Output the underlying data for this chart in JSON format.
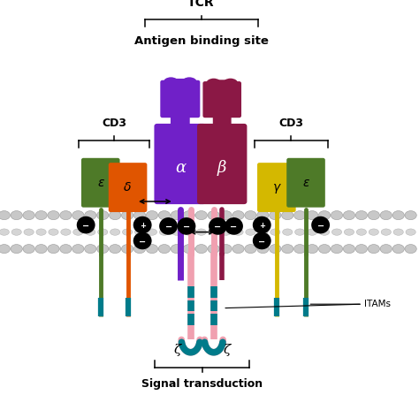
{
  "bg_color": "#ffffff",
  "alpha_color": "#7020c8",
  "beta_color": "#8b1845",
  "green_color": "#4e7a28",
  "orange_color": "#e05500",
  "yellow_color": "#d4b800",
  "pink_color": "#f0a0b0",
  "teal_color": "#007b8a",
  "mem_ball_color": "#c8c8c8",
  "mem_ball_edge": "#999999",
  "black": "#000000",
  "white": "#ffffff",
  "tcr_label": "TCR",
  "antigen_label": "Antigen binding site",
  "cd3_label": "CD3",
  "signal_label": "Signal transduction",
  "itams_label": "ITAMs",
  "zeta_label": "ζ",
  "alpha_label": "α",
  "beta_label": "β",
  "eps_label": "ε",
  "delta_label": "δ",
  "gamma_label": "γ",
  "figw": 4.74,
  "figh": 4.47,
  "dpi": 100
}
